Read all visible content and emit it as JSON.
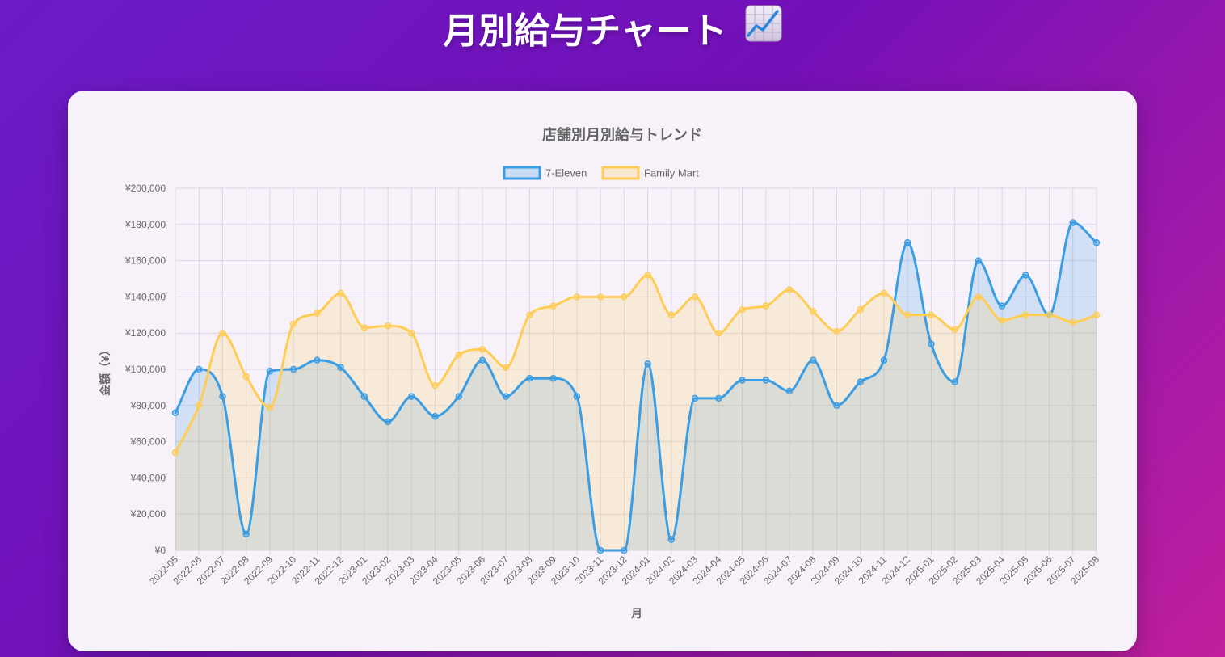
{
  "header": {
    "title": "月別給与チャート",
    "icon": "chart-increasing-icon"
  },
  "colors": {
    "seven_eleven": "#3b9de3",
    "family_mart": "#ffcd56",
    "grid": "#dcd4e3",
    "text": "#666666"
  },
  "chart_data": {
    "type": "line",
    "title": "店舗別月別給与トレンド",
    "xlabel": "月",
    "ylabel": "金額（¥）",
    "ylim": [
      0,
      200000
    ],
    "ytick_step": 20000,
    "y_tick_labels": [
      "¥0",
      "¥20,000",
      "¥40,000",
      "¥60,000",
      "¥80,000",
      "¥100,000",
      "¥120,000",
      "¥140,000",
      "¥160,000",
      "¥180,000",
      "¥200,000"
    ],
    "grid": true,
    "legend_position": "top",
    "fill": true,
    "categories": [
      "2022-05",
      "2022-06",
      "2022-07",
      "2022-08",
      "2022-09",
      "2022-10",
      "2022-11",
      "2022-12",
      "2023-01",
      "2023-02",
      "2023-03",
      "2023-04",
      "2023-05",
      "2023-06",
      "2023-07",
      "2023-08",
      "2023-09",
      "2023-10",
      "2023-11",
      "2023-12",
      "2024-01",
      "2024-02",
      "2024-03",
      "2024-04",
      "2024-05",
      "2024-06",
      "2024-07",
      "2024-08",
      "2024-09",
      "2024-10",
      "2024-11",
      "2024-12",
      "2025-01",
      "2025-02",
      "2025-03",
      "2025-04",
      "2025-05",
      "2025-06",
      "2025-07",
      "2025-08"
    ],
    "series": [
      {
        "name": "7-Eleven",
        "color": "#3b9de3",
        "values": [
          76000,
          100000,
          85000,
          9000,
          99000,
          100000,
          105000,
          101000,
          85000,
          71000,
          85000,
          74000,
          85000,
          105000,
          85000,
          95000,
          95000,
          85000,
          0,
          0,
          103000,
          6000,
          84000,
          84000,
          94000,
          94000,
          88000,
          105000,
          80000,
          93000,
          105000,
          170000,
          114000,
          93000,
          160000,
          135000,
          152000,
          130000,
          181000,
          170000
        ]
      },
      {
        "name": "Family Mart",
        "color": "#ffcd56",
        "values": [
          54000,
          80000,
          120000,
          96000,
          79000,
          125000,
          131000,
          142000,
          123000,
          124000,
          120000,
          91000,
          108000,
          111000,
          101000,
          130000,
          135000,
          140000,
          140000,
          140000,
          152000,
          130000,
          140000,
          120000,
          133000,
          135000,
          144000,
          132000,
          121000,
          133000,
          142000,
          130000,
          130000,
          122000,
          140000,
          127000,
          130000,
          130000,
          126000,
          130000
        ]
      }
    ]
  }
}
